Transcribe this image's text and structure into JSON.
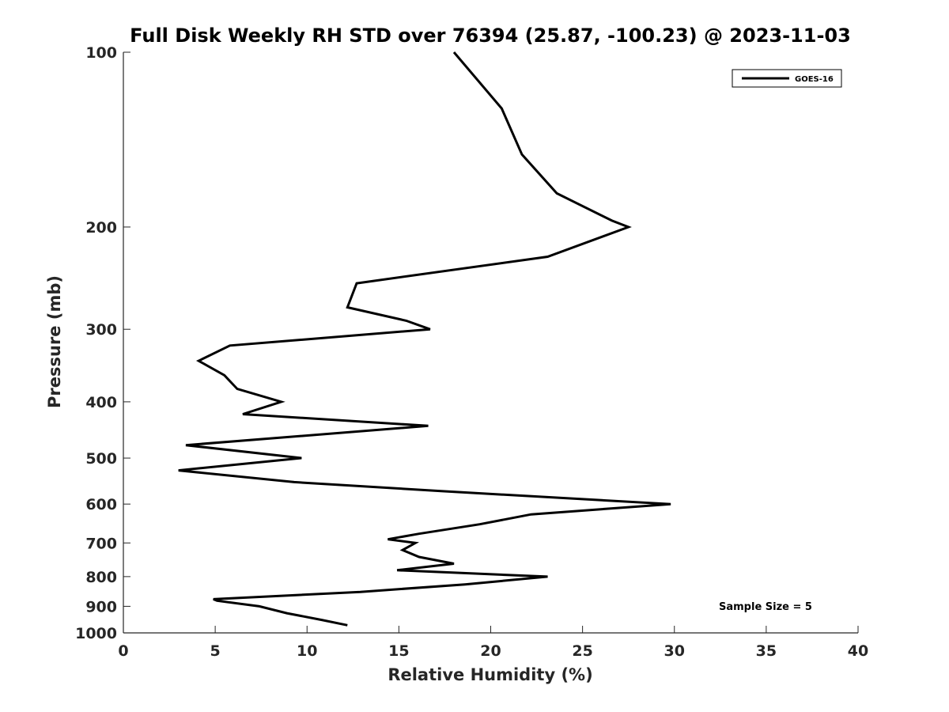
{
  "chart_data": {
    "type": "line",
    "title": "Full Disk Weekly RH STD over 76394 (25.87, -100.23) @ 2023-11-03",
    "xlabel": "Relative Humidity (%)",
    "ylabel": "Pressure (mb)",
    "xlim": [
      0,
      40
    ],
    "ylim": [
      100,
      1000
    ],
    "yscale": "log",
    "y_reversed": true,
    "xticks": [
      0,
      5,
      10,
      15,
      20,
      25,
      30,
      35,
      40
    ],
    "yticks": [
      100,
      200,
      300,
      400,
      500,
      600,
      700,
      800,
      900,
      1000
    ],
    "grid": false,
    "legend_position": "top-right",
    "annotation": "Sample Size = 5",
    "series": [
      {
        "name": "GOES-16",
        "color": "#000000",
        "points": [
          [
            18.0,
            100
          ],
          [
            20.6,
            125
          ],
          [
            21.7,
            150
          ],
          [
            23.6,
            175
          ],
          [
            26.6,
            195
          ],
          [
            27.5,
            200
          ],
          [
            23.1,
            225
          ],
          [
            12.7,
            250
          ],
          [
            12.2,
            275
          ],
          [
            15.4,
            290
          ],
          [
            16.7,
            300
          ],
          [
            5.8,
            320
          ],
          [
            4.1,
            340
          ],
          [
            5.5,
            360
          ],
          [
            6.2,
            380
          ],
          [
            8.6,
            400
          ],
          [
            6.5,
            420
          ],
          [
            16.6,
            440
          ],
          [
            3.4,
            475
          ],
          [
            9.7,
            500
          ],
          [
            3.0,
            525
          ],
          [
            9.3,
            550
          ],
          [
            17.3,
            570
          ],
          [
            29.8,
            600
          ],
          [
            22.2,
            625
          ],
          [
            19.4,
            650
          ],
          [
            16.1,
            675
          ],
          [
            14.4,
            690
          ],
          [
            15.9,
            700
          ],
          [
            15.2,
            720
          ],
          [
            16.1,
            740
          ],
          [
            18.0,
            760
          ],
          [
            14.9,
            780
          ],
          [
            23.1,
            800
          ],
          [
            18.6,
            825
          ],
          [
            12.9,
            850
          ],
          [
            4.9,
            875
          ],
          [
            5.1,
            880
          ],
          [
            7.4,
            900
          ],
          [
            8.9,
            925
          ],
          [
            10.8,
            950
          ],
          [
            12.2,
            970
          ]
        ]
      }
    ]
  }
}
